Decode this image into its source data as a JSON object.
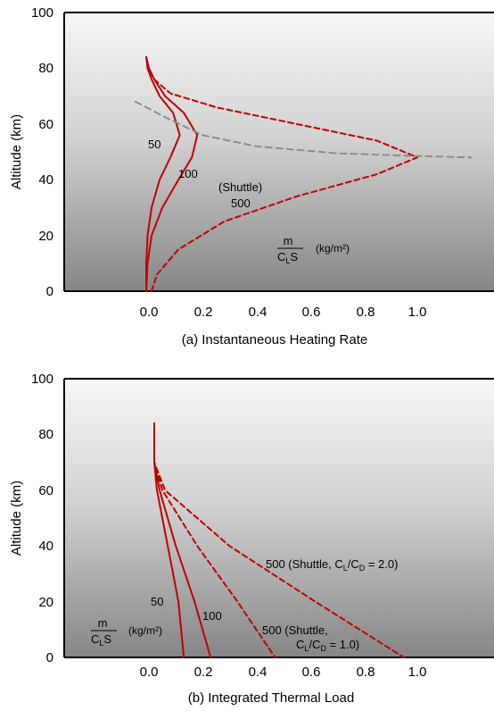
{
  "chart_data": [
    {
      "type": "line",
      "caption": "(a) Instantaneous Heating Rate",
      "ylabel": "Altitude (km)",
      "xlabel": "",
      "xlim": [
        -0.3,
        1.3
      ],
      "ylim": [
        0,
        100
      ],
      "xticks": [
        "0.0",
        "0.2",
        "0.4",
        "0.6",
        "0.8",
        "1.0"
      ],
      "yticks": [
        "0",
        "20",
        "40",
        "60",
        "80",
        "100"
      ],
      "colors": {
        "series": "#c00000",
        "reference": "#8c8c8c"
      },
      "units_label": {
        "num": "m",
        "den": "C",
        "den_sub": "L",
        "den_tail": "S",
        "unit": "(kg/m²)"
      },
      "series": [
        {
          "label": "50",
          "style": "solid",
          "points": [
            [
              -0.01,
              0
            ],
            [
              -0.01,
              10
            ],
            [
              -0.005,
              20
            ],
            [
              0.01,
              30
            ],
            [
              0.04,
              40
            ],
            [
              0.08,
              48
            ],
            [
              0.115,
              56
            ],
            [
              0.09,
              64
            ],
            [
              0.04,
              70
            ],
            [
              0.01,
              76
            ],
            [
              -0.005,
              80
            ],
            [
              -0.01,
              84
            ]
          ]
        },
        {
          "label": "100",
          "style": "solid",
          "points": [
            [
              -0.01,
              0
            ],
            [
              -0.005,
              10
            ],
            [
              0.01,
              20
            ],
            [
              0.05,
              30
            ],
            [
              0.11,
              40
            ],
            [
              0.16,
              48
            ],
            [
              0.18,
              56
            ],
            [
              0.13,
              64
            ],
            [
              0.06,
              70
            ],
            [
              0.02,
              76
            ],
            [
              0.0,
              80
            ],
            [
              -0.01,
              84
            ]
          ]
        },
        {
          "label_lines": [
            "(Shuttle)",
            "500"
          ],
          "style": "dashed",
          "points": [
            [
              0.01,
              0
            ],
            [
              0.03,
              6
            ],
            [
              0.11,
              15
            ],
            [
              0.28,
              25
            ],
            [
              0.55,
              34
            ],
            [
              0.85,
              42
            ],
            [
              1.0,
              48
            ],
            [
              0.85,
              54
            ],
            [
              0.55,
              60
            ],
            [
              0.25,
              66
            ],
            [
              0.08,
              71
            ],
            [
              0.02,
              76
            ],
            [
              0.0,
              80
            ]
          ]
        },
        {
          "label": "",
          "style": "dashed-reference",
          "points": [
            [
              -0.05,
              68
            ],
            [
              0.07,
              62
            ],
            [
              0.2,
              56
            ],
            [
              0.4,
              52
            ],
            [
              0.7,
              49.5
            ],
            [
              1.0,
              48.5
            ],
            [
              1.2,
              48
            ]
          ]
        }
      ]
    },
    {
      "type": "line",
      "caption": "(b) Integrated Thermal Load",
      "ylabel": "Altitude (km)",
      "xlabel": "",
      "xlim": [
        -0.3,
        1.3
      ],
      "ylim": [
        0,
        100
      ],
      "xticks": [
        "0.0",
        "0.2",
        "0.4",
        "0.6",
        "0.8",
        "1.0"
      ],
      "yticks": [
        "0",
        "20",
        "40",
        "60",
        "80",
        "100"
      ],
      "colors": {
        "series": "#c00000"
      },
      "units_label": {
        "num": "m",
        "den": "C",
        "den_sub": "L",
        "den_tail": "S",
        "unit": "(kg/m²)"
      },
      "series": [
        {
          "label": "50",
          "style": "solid",
          "points": [
            [
              0.02,
              84
            ],
            [
              0.02,
              70
            ],
            [
              0.03,
              60
            ],
            [
              0.07,
              40
            ],
            [
              0.11,
              20
            ],
            [
              0.13,
              0
            ]
          ]
        },
        {
          "label": "100",
          "style": "solid",
          "points": [
            [
              0.02,
              84
            ],
            [
              0.02,
              70
            ],
            [
              0.04,
              60
            ],
            [
              0.1,
              40
            ],
            [
              0.17,
              20
            ],
            [
              0.23,
              0
            ]
          ]
        },
        {
          "label_lines": [
            "500 (Shuttle,",
            "C_L/C_D = 1.0)"
          ],
          "style": "dashed",
          "points": [
            [
              0.02,
              84
            ],
            [
              0.02,
              70
            ],
            [
              0.05,
              60
            ],
            [
              0.18,
              40
            ],
            [
              0.33,
              20
            ],
            [
              0.47,
              0
            ]
          ]
        },
        {
          "label": "500 (Shuttle, C_L/C_D = 2.0)",
          "style": "dashed",
          "points": [
            [
              0.02,
              84
            ],
            [
              0.02,
              70
            ],
            [
              0.06,
              60
            ],
            [
              0.3,
              40
            ],
            [
              0.62,
              20
            ],
            [
              0.95,
              0
            ]
          ]
        }
      ]
    }
  ]
}
